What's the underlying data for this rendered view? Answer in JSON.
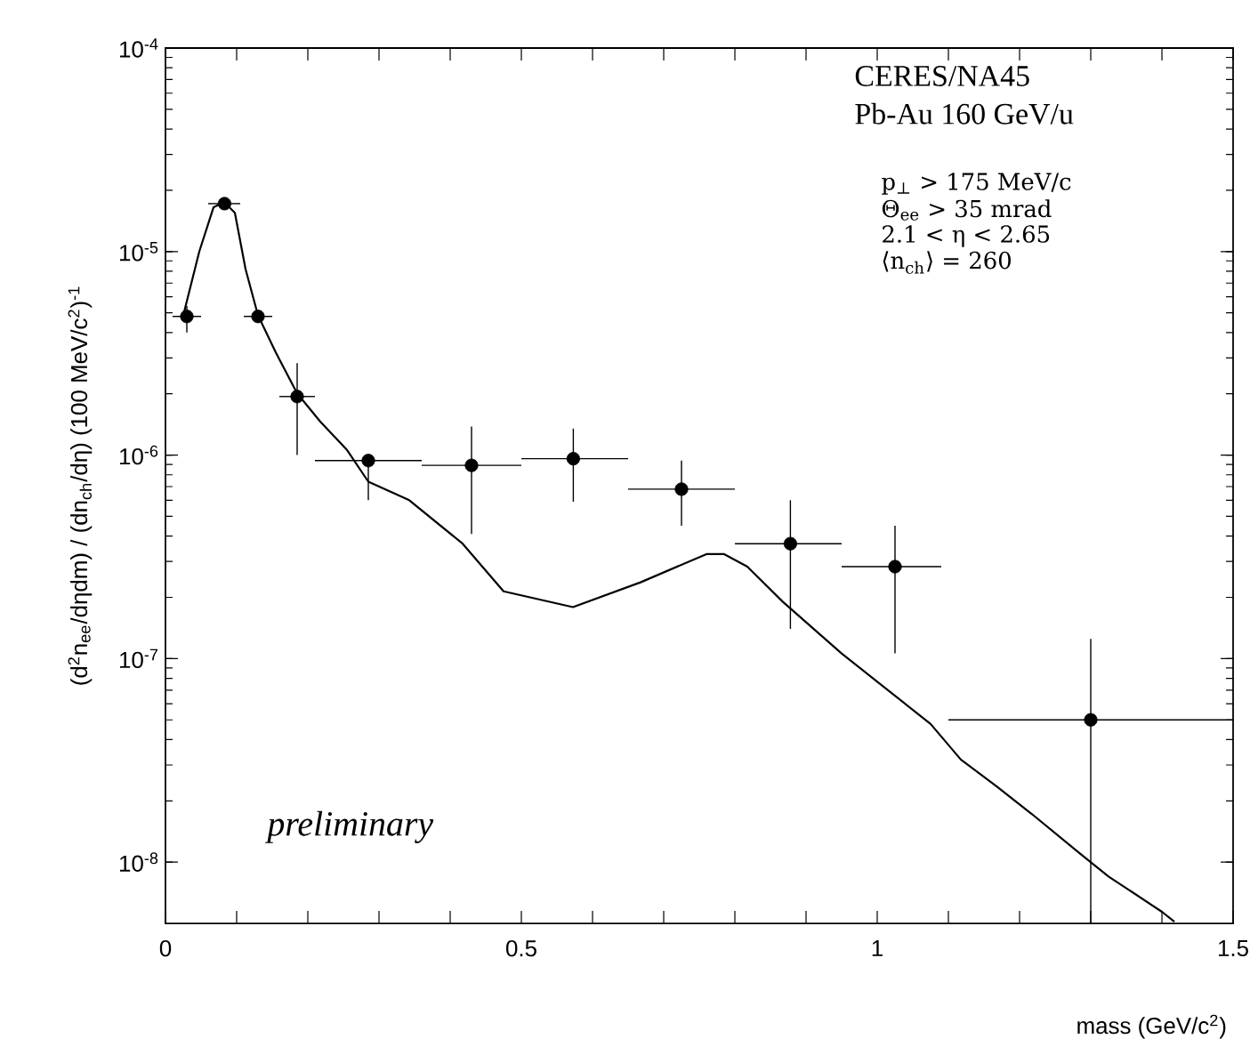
{
  "chart_data": {
    "type": "line",
    "xlabel": "mass (GeV/c$^{2}$)",
    "ylabel": "(d$^{2}$n$_{ee}$/dηdm) / (dn$_{ch}$/dη) (100 MeV/c$^{2}$)$^{-1}$",
    "log": "y",
    "xlim": [
      0,
      1.5
    ],
    "ylim": [
      5e-09,
      0.0001
    ],
    "xticks": [
      0,
      {
        "value": 0.1,
        "label": null
      },
      {
        "value": 0.2,
        "label": null
      },
      {
        "value": 0.3,
        "label": null
      },
      {
        "value": 0.4,
        "label": null
      },
      0.5,
      {
        "value": 0.6,
        "label": null
      },
      {
        "value": 0.7,
        "label": null
      },
      {
        "value": 0.8,
        "label": null
      },
      {
        "value": 0.9,
        "label": null
      },
      1,
      {
        "value": 1.1,
        "label": null
      },
      {
        "value": 1.2,
        "label": null
      },
      {
        "value": 1.3,
        "label": null
      },
      {
        "value": 1.4,
        "label": null
      },
      1.5
    ],
    "yticks": [
      {
        "value": 1e-08,
        "label": "10$^{-8}$"
      },
      {
        "value": 1e-07,
        "label": "10$^{-7}$"
      },
      {
        "value": 1e-06,
        "label": "10$^{-6}$"
      },
      {
        "value": 1e-05,
        "label": "10$^{-5}$"
      },
      {
        "value": 0.0001,
        "label": "10$^{-4}$"
      }
    ],
    "series": [
      {
        "type": "scatter",
        "marker": "circle",
        "color": "#000000",
        "x": [
          0.03,
          0.083,
          0.13,
          0.185,
          0.285,
          0.43,
          0.573,
          0.725,
          0.878,
          1.025,
          1.3
        ],
        "values": [
          4.8e-06,
          1.72e-05,
          4.8e-06,
          1.94e-06,
          9.4e-07,
          8.9e-07,
          9.6e-07,
          6.8e-07,
          3.67e-07,
          2.83e-07,
          5e-08
        ],
        "errors": [
          [
            4e-06,
            5.4e-06
          ],
          null,
          null,
          [
            1e-06,
            2.83e-06
          ],
          [
            6e-07,
            1e-06
          ],
          [
            4.1e-07,
            1.38e-06
          ],
          [
            5.9e-07,
            1.35e-06
          ],
          [
            4.5e-07,
            9.4e-07
          ],
          [
            1.4e-07,
            6e-07
          ],
          [
            1.06e-07,
            4.5e-07
          ],
          [
            5e-09,
            1.25e-07
          ]
        ],
        "xerrors": [
          [
            0.01,
            0.05
          ],
          [
            0.06,
            0.105
          ],
          [
            0.11,
            0.15
          ],
          [
            0.16,
            0.21
          ],
          [
            0.21,
            0.36
          ],
          [
            0.36,
            0.5
          ],
          [
            0.5,
            0.65
          ],
          [
            0.65,
            0.8
          ],
          [
            0.8,
            0.95
          ],
          [
            0.95,
            1.09
          ],
          [
            1.1,
            1.5
          ]
        ]
      },
      {
        "marker": "none",
        "line_style": "solid",
        "color": "#000000",
        "x": [
          0.025,
          0.0475,
          0.0675,
          0.0825,
          0.0975,
          0.1125,
          0.13,
          0.155,
          0.185,
          0.2175,
          0.255,
          0.285,
          0.3425,
          0.4175,
          0.475,
          0.5725,
          0.6675,
          0.76,
          0.785,
          0.8175,
          0.8675,
          0.95,
          1.0,
          1.075,
          1.1175,
          1.1675,
          1.2175,
          1.285,
          1.325,
          1.4,
          1.4175
        ],
        "values": [
          4.86e-06,
          1e-05,
          1.65e-05,
          1.75e-05,
          1.55e-05,
          8.2e-06,
          4.86e-06,
          3.19e-06,
          2.01e-06,
          1.46e-06,
          1.06e-06,
          7.4e-07,
          6e-07,
          3.67e-07,
          2.14e-07,
          1.79e-07,
          2.37e-07,
          3.26e-07,
          3.26e-07,
          2.83e-07,
          1.9e-07,
          1.06e-07,
          7.7e-08,
          4.77e-08,
          3.19e-08,
          2.36e-08,
          1.72e-08,
          1.1e-08,
          8.5e-09,
          5.7e-09,
          5.1e-09
        ]
      }
    ],
    "annotations": [
      "CERES/NA45",
      "Pb-Au 160 GeV/u",
      "p$_{⊥}$ > 175 MeV/c",
      "Θ$_{ee}$ > 35 mrad",
      "2.1 < η < 2.65",
      "⟨n$_{ch}$⟩ = 260",
      "*preliminary*"
    ]
  }
}
